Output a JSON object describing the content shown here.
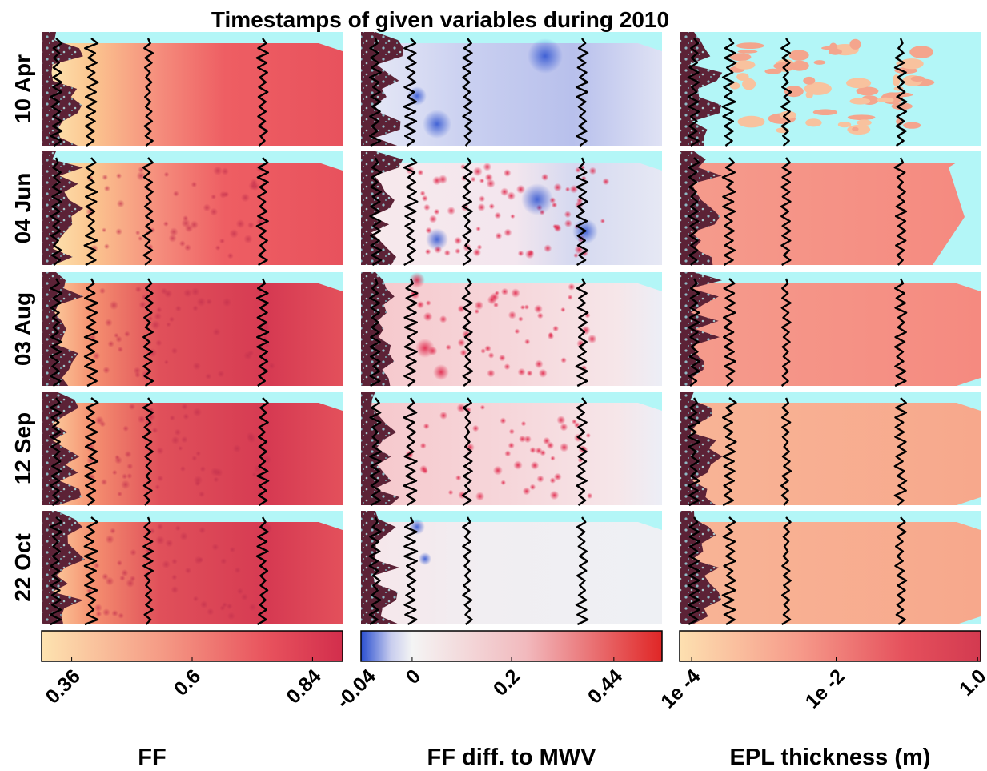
{
  "title": "Timestamps of given variables during 2010",
  "rows": [
    "10 Apr",
    "04 Jun",
    "03 Aug",
    "12 Sep",
    "22 Oct"
  ],
  "columns": [
    {
      "id": "ff",
      "colorbar_label": "FF",
      "ticks": [
        "0.36",
        "0.6",
        "0.84"
      ]
    },
    {
      "id": "ffdiff",
      "colorbar_label": "FF diff. to MWV",
      "ticks": [
        "-0.04",
        "0",
        "0.2",
        "0.44"
      ]
    },
    {
      "id": "epl",
      "colorbar_label": "EPL thickness (m)",
      "ticks": [
        "1e -4",
        "1e -2",
        "1.0"
      ]
    }
  ],
  "colors": {
    "ff_low": "#fde3b0",
    "ff_mid": "#f06a6a",
    "ff_high": "#d8334f",
    "diff_neg": "#2a4fd0",
    "diff_zero": "#f4f4f4",
    "diff_pos": "#e02626",
    "epl_low": "#fde0b0",
    "epl_high": "#d33a50",
    "background_cyan": "#b3f6f7",
    "land": "#5c2236"
  }
}
